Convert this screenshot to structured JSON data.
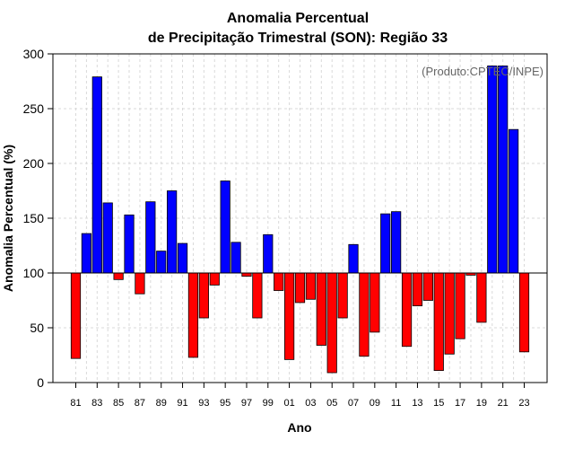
{
  "chart_data": {
    "type": "bar",
    "title": "Anomalia Percentual",
    "subtitle": "de Precipitação Trimestral (SON): Região 33",
    "xlabel": "Ano",
    "ylabel": "Anomalia Percentual (%)",
    "annotation": "(Produto:CPTEC/INPE)",
    "baseline": 100,
    "ylim": [
      0,
      300
    ],
    "yticks": [
      0,
      50,
      100,
      150,
      200,
      250,
      300
    ],
    "grid": true,
    "colors": {
      "above": "#0000ff",
      "below": "#ff0000",
      "edge": "#000000",
      "grid": "#d9d9d9"
    },
    "categories": [
      "81",
      "82",
      "83",
      "84",
      "85",
      "86",
      "87",
      "88",
      "89",
      "90",
      "91",
      "92",
      "93",
      "94",
      "95",
      "96",
      "97",
      "98",
      "99",
      "00",
      "01",
      "02",
      "03",
      "04",
      "05",
      "06",
      "07",
      "08",
      "09",
      "10",
      "11",
      "12",
      "13",
      "14",
      "15",
      "16",
      "17",
      "18",
      "19",
      "20",
      "21",
      "22",
      "23"
    ],
    "xtick_labels": [
      "81",
      "83",
      "85",
      "87",
      "89",
      "91",
      "93",
      "95",
      "97",
      "99",
      "01",
      "03",
      "05",
      "07",
      "09",
      "11",
      "13",
      "15",
      "17",
      "19",
      "21",
      "23"
    ],
    "values": [
      22,
      136,
      279,
      164,
      94,
      153,
      81,
      165,
      120,
      175,
      127,
      23,
      59,
      89,
      184,
      128,
      97,
      59,
      135,
      84,
      21,
      73,
      76,
      34,
      9,
      59,
      126,
      24,
      46,
      154,
      156,
      33,
      70,
      75,
      11,
      26,
      40,
      98,
      55,
      289,
      289,
      231,
      28
    ]
  }
}
